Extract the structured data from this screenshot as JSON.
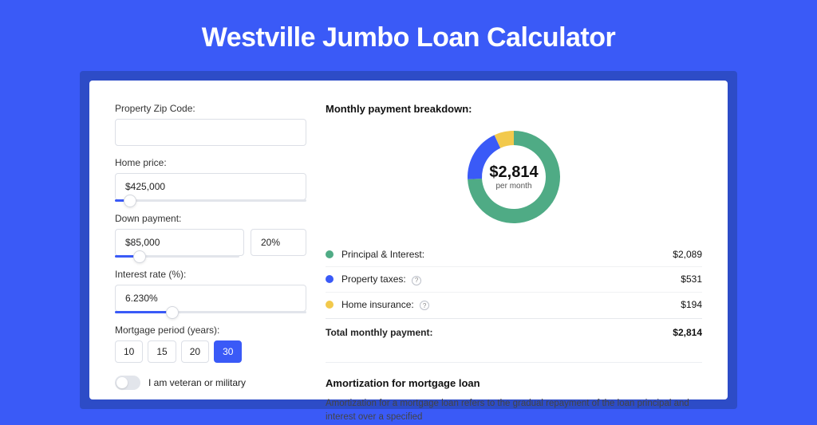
{
  "page": {
    "title": "Westville Jumbo Loan Calculator",
    "colors": {
      "background": "#3a5af7",
      "frame": "#2d4cc7",
      "card": "#ffffff",
      "accent": "#3a5af7",
      "border": "#dcdfe6",
      "text": "#222222"
    }
  },
  "form": {
    "zip": {
      "label": "Property Zip Code:",
      "value": ""
    },
    "home_price": {
      "label": "Home price:",
      "value": "$425,000",
      "slider_pct": 8
    },
    "down_payment": {
      "label": "Down payment:",
      "value": "$85,000",
      "percent": "20%",
      "slider_pct": 20
    },
    "interest_rate": {
      "label": "Interest rate (%):",
      "value": "6.230%",
      "slider_pct": 30
    },
    "mortgage_period": {
      "label": "Mortgage period (years):",
      "options": [
        "10",
        "15",
        "20",
        "30"
      ],
      "selected": "30"
    },
    "veteran": {
      "label": "I am veteran or military",
      "checked": false
    }
  },
  "breakdown": {
    "heading": "Monthly payment breakdown:",
    "center_amount": "$2,814",
    "center_label": "per month",
    "items": [
      {
        "label": "Principal & Interest:",
        "value": "$2,089",
        "color": "#4fab85",
        "pct": 74.2,
        "has_info": false
      },
      {
        "label": "Property taxes:",
        "value": "$531",
        "color": "#3a5af7",
        "pct": 18.9,
        "has_info": true
      },
      {
        "label": "Home insurance:",
        "value": "$194",
        "color": "#f2c94c",
        "pct": 6.9,
        "has_info": true
      }
    ],
    "total_label": "Total monthly payment:",
    "total_value": "$2,814"
  },
  "amortization": {
    "heading": "Amortization for mortgage loan",
    "text": "Amortization for a mortgage loan refers to the gradual repayment of the loan principal and interest over a specified"
  }
}
